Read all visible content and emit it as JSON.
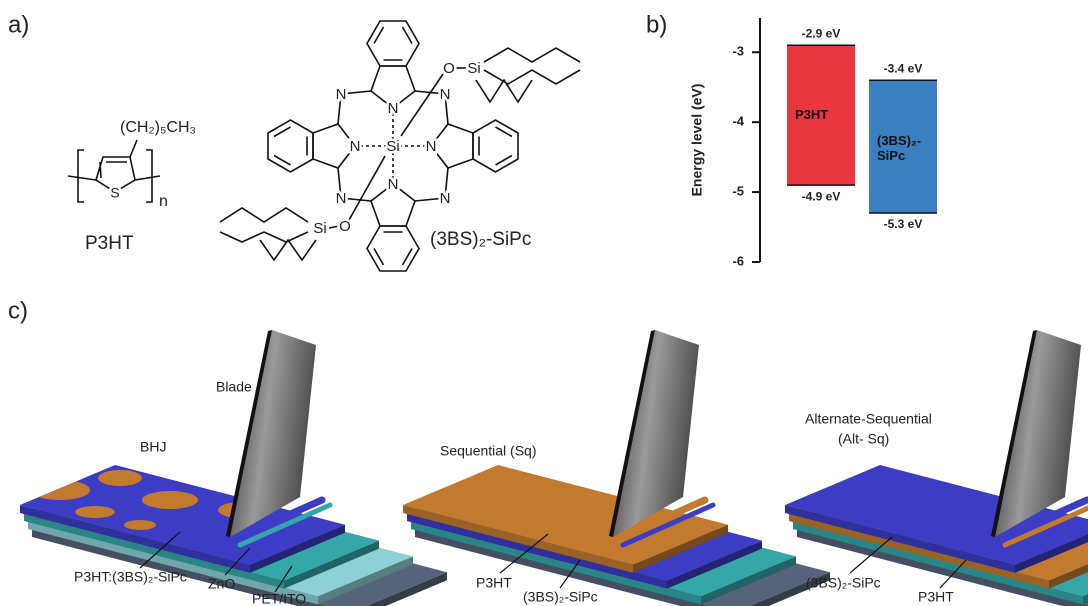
{
  "panel_labels": [
    "a)",
    "b)",
    "c)"
  ],
  "panel_a": {
    "polymer": {
      "side_chain": "(CH₂)₅CH₃",
      "heteroatom": "S",
      "repeat": "n",
      "name": "P3HT"
    },
    "molecule": {
      "name": "(3BS)₂-SiPc",
      "atoms": {
        "silicon": "Si",
        "oxygen": "O",
        "nitrogen": "N"
      }
    }
  },
  "energy_diagram": {
    "type": "floating-bar",
    "y_label": "Energy level (eV)",
    "ylim": [
      -6,
      -2.51
    ],
    "yticks": [
      -3,
      -4,
      -5,
      -6
    ],
    "bars": [
      {
        "name": "P3HT",
        "color": "#e8373f",
        "top": -2.9,
        "bottom": -4.9,
        "top_label": "-2.9 eV",
        "bottom_label": "-4.9 eV"
      },
      {
        "name": "(3BS)₂-SiPc",
        "color": "#3a7fc0",
        "top": -3.4,
        "bottom": -5.3,
        "top_label": "-3.4 eV",
        "bottom_label": "-5.3 eV"
      }
    ]
  },
  "panel_c": {
    "bhj": {
      "blade": "Blade",
      "title": "BHJ",
      "active_layer": "P3HT:(3BS)₂-SiPc",
      "interlayer": "ZnO",
      "substrate": "PET/ITO"
    },
    "sequential": {
      "title": "Sequential (Sq)",
      "top_layer": "P3HT",
      "bottom_layer": "(3BS)₂-SiPc"
    },
    "alternate": {
      "title_lines": [
        "Alternate-Sequential",
        "(Alt- Sq)"
      ],
      "top_layer": "(3BS)₂-SiPc",
      "bottom_layer": "P3HT"
    }
  }
}
